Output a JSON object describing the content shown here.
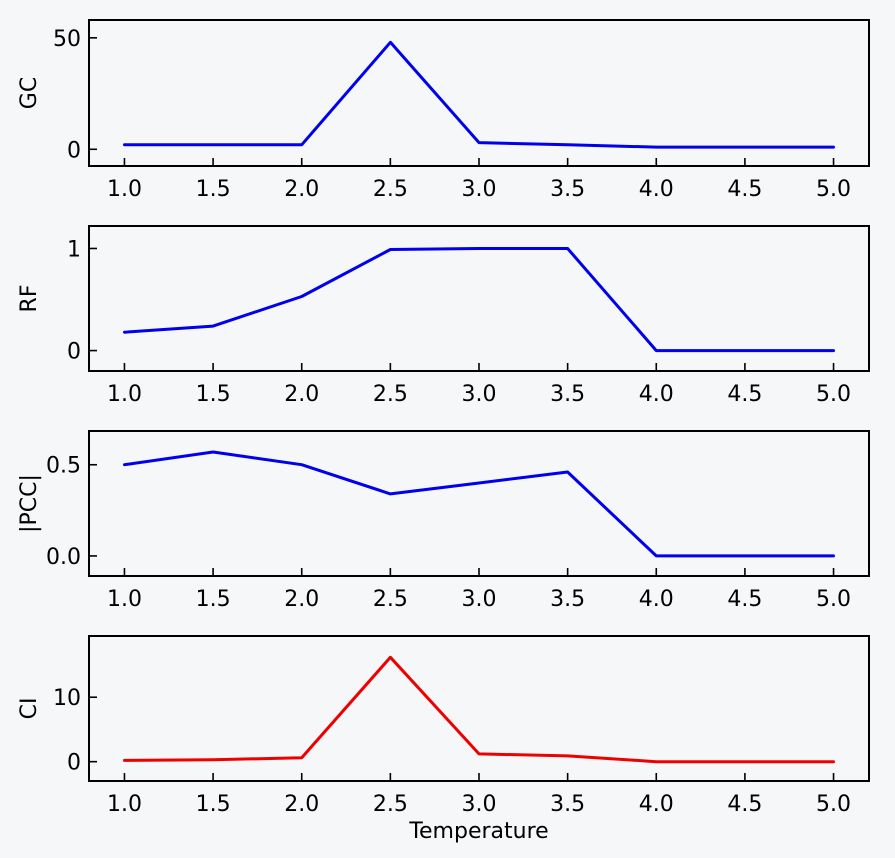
{
  "chart_data": [
    {
      "type": "line",
      "ylabel": "GC",
      "xlabel": "",
      "x": [
        1.0,
        1.5,
        2.0,
        2.5,
        3.0,
        3.5,
        4.0,
        4.5,
        5.0
      ],
      "xticks": [
        "1.0",
        "1.5",
        "2.0",
        "2.5",
        "3.0",
        "3.5",
        "4.0",
        "4.5",
        "5.0"
      ],
      "xlim": [
        0.8,
        5.2
      ],
      "yticks": [
        0,
        50
      ],
      "ytick_labels": [
        "0",
        "50"
      ],
      "ylim": [
        -7.5,
        58
      ],
      "series": [
        {
          "values": [
            2,
            2,
            2,
            48,
            3,
            2,
            1,
            1,
            1
          ],
          "color": "#0000ee"
        }
      ]
    },
    {
      "type": "line",
      "ylabel": "RF",
      "xlabel": "",
      "x": [
        1.0,
        1.5,
        2.0,
        2.5,
        3.0,
        3.5,
        4.0,
        4.5,
        5.0
      ],
      "xticks": [
        "1.0",
        "1.5",
        "2.0",
        "2.5",
        "3.0",
        "3.5",
        "4.0",
        "4.5",
        "5.0"
      ],
      "xlim": [
        0.8,
        5.2
      ],
      "yticks": [
        0,
        1
      ],
      "ytick_labels": [
        "0",
        "1"
      ],
      "ylim": [
        -0.2,
        1.22
      ],
      "series": [
        {
          "values": [
            0.18,
            0.24,
            0.53,
            0.99,
            1.0,
            1.0,
            0.0,
            0.0,
            0.0
          ],
          "color": "#0000ee"
        }
      ]
    },
    {
      "type": "line",
      "ylabel": "|PCC|",
      "xlabel": "",
      "x": [
        1.0,
        1.5,
        2.0,
        2.5,
        3.0,
        3.5,
        4.0,
        4.5,
        5.0
      ],
      "xticks": [
        "1.0",
        "1.5",
        "2.0",
        "2.5",
        "3.0",
        "3.5",
        "4.0",
        "4.5",
        "5.0"
      ],
      "xlim": [
        0.8,
        5.2
      ],
      "yticks": [
        0.0,
        0.5
      ],
      "ytick_labels": [
        "0.0",
        "0.5"
      ],
      "ylim": [
        -0.11,
        0.685
      ],
      "series": [
        {
          "values": [
            0.5,
            0.57,
            0.5,
            0.34,
            0.4,
            0.46,
            0.0,
            0.0,
            0.0
          ],
          "color": "#0000ee"
        }
      ]
    },
    {
      "type": "line",
      "ylabel": "CI",
      "xlabel": "Temperature",
      "x": [
        1.0,
        1.5,
        2.0,
        2.5,
        3.0,
        3.5,
        4.0,
        4.5,
        5.0
      ],
      "xticks": [
        "1.0",
        "1.5",
        "2.0",
        "2.5",
        "3.0",
        "3.5",
        "4.0",
        "4.5",
        "5.0"
      ],
      "xlim": [
        0.8,
        5.2
      ],
      "yticks": [
        0,
        10
      ],
      "ytick_labels": [
        "0",
        "10"
      ],
      "ylim": [
        -3.0,
        19.5
      ],
      "series": [
        {
          "values": [
            0.2,
            0.3,
            0.6,
            16.2,
            1.2,
            0.9,
            0.0,
            0.0,
            0.0
          ],
          "color": "#ee0000"
        }
      ]
    }
  ]
}
